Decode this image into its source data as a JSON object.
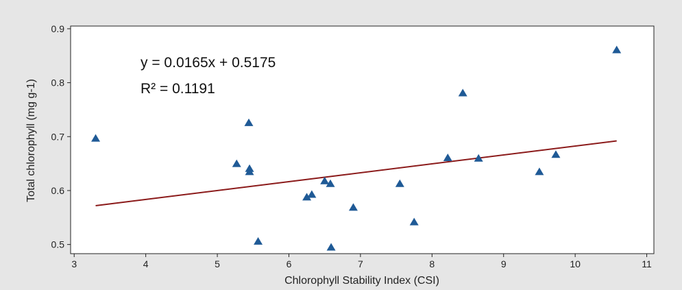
{
  "chart_data": {
    "type": "scatter",
    "title": "",
    "xlabel": "Chlorophyll Stability Index (CSI)",
    "ylabel": "Total chlorophyll (mg g-1)",
    "xlim": [
      2.95,
      11.1
    ],
    "ylim": [
      0.483,
      0.905
    ],
    "xticks": [
      "3",
      "4",
      "5",
      "6",
      "7",
      "8",
      "9",
      "10",
      "11"
    ],
    "yticks": [
      "0.5",
      "0.6",
      "0.7",
      "0.8",
      "0.9"
    ],
    "grid": false,
    "marker": "triangle",
    "colors": {
      "points": "#1f5a96",
      "trendline": "#8b1a1a",
      "plot_background": "#ffffff",
      "outer_background": "#e6e6e6"
    },
    "points": [
      {
        "x": 3.3,
        "y": 0.697
      },
      {
        "x": 5.27,
        "y": 0.65
      },
      {
        "x": 5.44,
        "y": 0.726
      },
      {
        "x": 5.45,
        "y": 0.641
      },
      {
        "x": 5.45,
        "y": 0.635
      },
      {
        "x": 5.57,
        "y": 0.506
      },
      {
        "x": 6.25,
        "y": 0.588
      },
      {
        "x": 6.32,
        "y": 0.593
      },
      {
        "x": 6.5,
        "y": 0.618
      },
      {
        "x": 6.58,
        "y": 0.613
      },
      {
        "x": 6.59,
        "y": 0.495
      },
      {
        "x": 6.9,
        "y": 0.569
      },
      {
        "x": 7.55,
        "y": 0.613
      },
      {
        "x": 7.75,
        "y": 0.542
      },
      {
        "x": 8.22,
        "y": 0.661
      },
      {
        "x": 8.43,
        "y": 0.781
      },
      {
        "x": 8.65,
        "y": 0.66
      },
      {
        "x": 9.5,
        "y": 0.635
      },
      {
        "x": 9.73,
        "y": 0.667
      },
      {
        "x": 10.58,
        "y": 0.861
      }
    ],
    "trendline": {
      "slope": 0.0165,
      "intercept": 0.5175,
      "x_start": 3.3,
      "x_end": 10.58
    },
    "annotations": [
      "y = 0.0165x + 0.5175",
      "R² = 0.1191"
    ]
  }
}
